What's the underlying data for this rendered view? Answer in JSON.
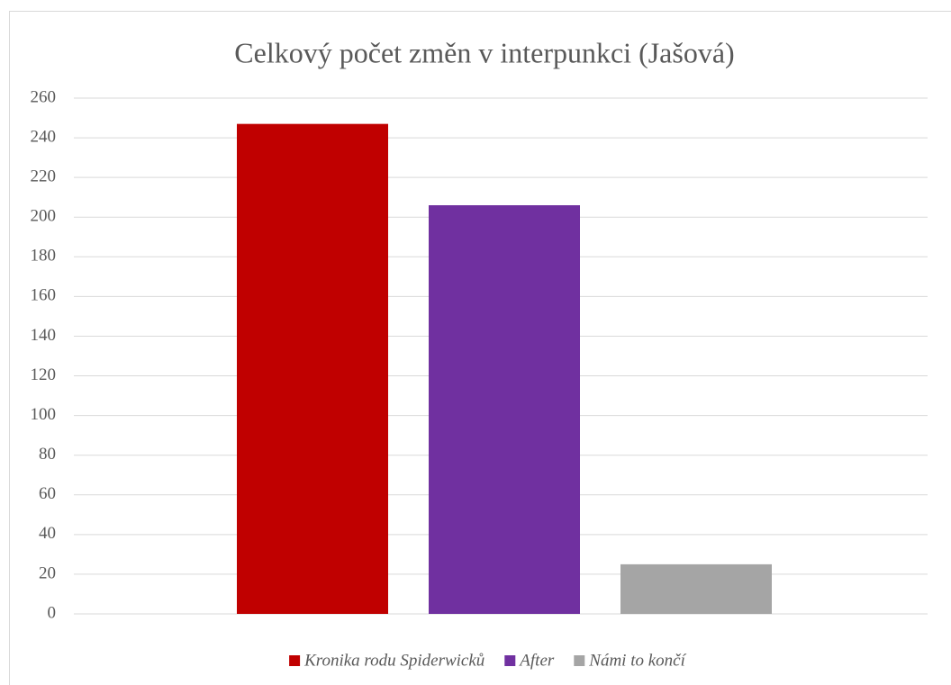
{
  "chart_data": {
    "type": "bar",
    "title": "Celkový počet změn v interpunkci (Jašová)",
    "categories": [
      null
    ],
    "series": [
      {
        "name": "Kronika rodu Spiderwicků",
        "color": "#c00000",
        "values": [
          247
        ]
      },
      {
        "name": "After",
        "color": "#7030a0",
        "values": [
          206
        ]
      },
      {
        "name": "Námi to končí",
        "color": "#a5a5a5",
        "values": [
          25
        ]
      }
    ],
    "ylim": [
      0,
      260
    ],
    "yticks": [
      0,
      20,
      40,
      60,
      80,
      100,
      120,
      140,
      160,
      180,
      200,
      220,
      240,
      260
    ],
    "grid": true,
    "legend": "bottom"
  }
}
